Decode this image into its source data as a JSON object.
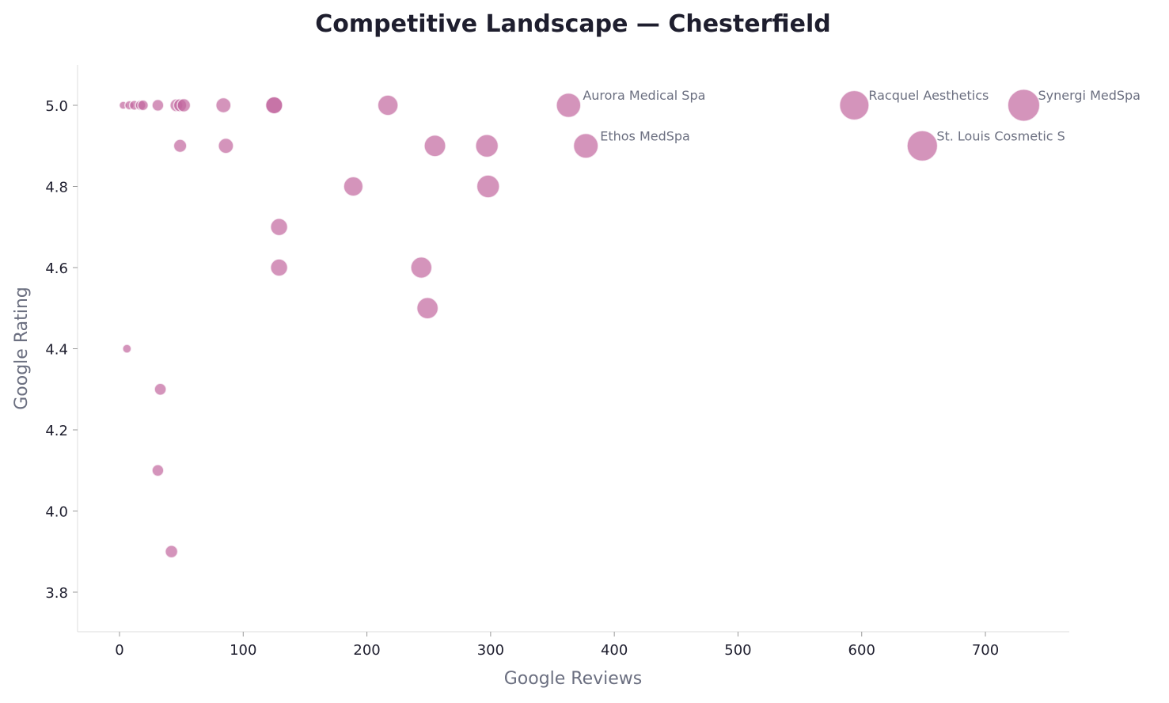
{
  "chart_data": {
    "type": "scatter",
    "title": "Competitive Landscape — Chesterfield",
    "xlabel": "Google Reviews",
    "ylabel": "Google Rating",
    "xlim": [
      -34,
      766
    ],
    "ylim": [
      3.7,
      5.1
    ],
    "xticks": [
      0,
      100,
      200,
      300,
      400,
      500,
      600,
      700
    ],
    "yticks": [
      3.8,
      4.0,
      4.2,
      4.4,
      4.6,
      4.8,
      5.0
    ],
    "grid": false,
    "color": "#c2679e",
    "points": [
      {
        "x": 3,
        "y": 5.0
      },
      {
        "x": 8,
        "y": 5.0
      },
      {
        "x": 12,
        "y": 5.0
      },
      {
        "x": 17,
        "y": 5.0
      },
      {
        "x": 19,
        "y": 5.0
      },
      {
        "x": 31,
        "y": 5.0
      },
      {
        "x": 46,
        "y": 5.0
      },
      {
        "x": 49,
        "y": 5.0
      },
      {
        "x": 52,
        "y": 5.0
      },
      {
        "x": 84,
        "y": 5.0
      },
      {
        "x": 125,
        "y": 5.0
      },
      {
        "x": 125,
        "y": 5.0
      },
      {
        "x": 217,
        "y": 5.0
      },
      {
        "x": 49,
        "y": 4.9
      },
      {
        "x": 86,
        "y": 4.9
      },
      {
        "x": 255,
        "y": 4.9
      },
      {
        "x": 297,
        "y": 4.9
      },
      {
        "x": 189,
        "y": 4.8
      },
      {
        "x": 298,
        "y": 4.8
      },
      {
        "x": 129,
        "y": 4.7
      },
      {
        "x": 129,
        "y": 4.6
      },
      {
        "x": 244,
        "y": 4.6
      },
      {
        "x": 249,
        "y": 4.5
      },
      {
        "x": 6,
        "y": 4.4
      },
      {
        "x": 33,
        "y": 4.3
      },
      {
        "x": 31,
        "y": 4.1
      },
      {
        "x": 42,
        "y": 3.9
      },
      {
        "x": 363,
        "y": 5.0,
        "label": "Aurora Medical Spa"
      },
      {
        "x": 377,
        "y": 4.9,
        "label": "Ethos MedSpa"
      },
      {
        "x": 594,
        "y": 5.0,
        "label": "Racquel Aesthetics"
      },
      {
        "x": 649,
        "y": 4.9,
        "label": "St. Louis Cosmetic S"
      },
      {
        "x": 731,
        "y": 5.0,
        "label": "Synergi MedSpa"
      }
    ]
  }
}
